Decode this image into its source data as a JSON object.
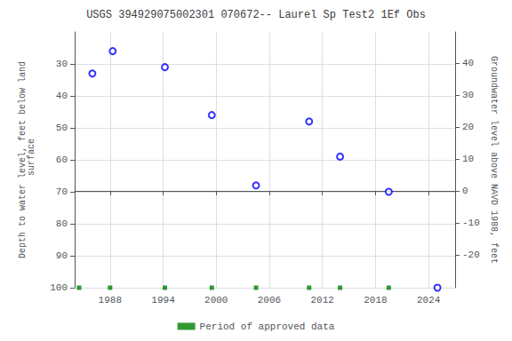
{
  "chart_data": {
    "type": "scatter",
    "title": "USGS 394929075002301 070672-- Laurel Sp Test2 1Ef Obs",
    "ylabel": "Depth to water level, feet below land\n surface",
    "y2label": "Groundwater level above NAVD 1988, feet",
    "series": [
      {
        "x": [
          1986.0,
          1988.3,
          1994.2,
          1999.5,
          2004.5,
          2010.5,
          2014.0,
          2019.5,
          2025.0
        ],
        "values": [
          33,
          26,
          31,
          46,
          68,
          48,
          59,
          70,
          100
        ],
        "color": "blue",
        "marker": "open_circle"
      },
      {
        "name": "Period of approved data",
        "x": [
          1984.5,
          1988.0,
          1994.2,
          1999.5,
          2004.5,
          2010.5,
          2014.0,
          2019.5
        ],
        "values": [
          100,
          100,
          100,
          100,
          100,
          100,
          100,
          100
        ],
        "color": "green",
        "marker": "square"
      }
    ],
    "xlim": [
      1984,
      2027
    ],
    "xticks": [
      1988,
      1994,
      2000,
      2006,
      2012,
      2018,
      2024
    ],
    "ylim": [
      100,
      20
    ],
    "yticks": [
      30,
      40,
      50,
      60,
      70,
      80,
      90,
      100
    ],
    "y2lim": [
      -30.3,
      49.7
    ],
    "y2ticks": [
      40,
      30,
      20,
      10,
      0,
      -10,
      -20
    ],
    "grid": true,
    "legend": "bottom"
  }
}
